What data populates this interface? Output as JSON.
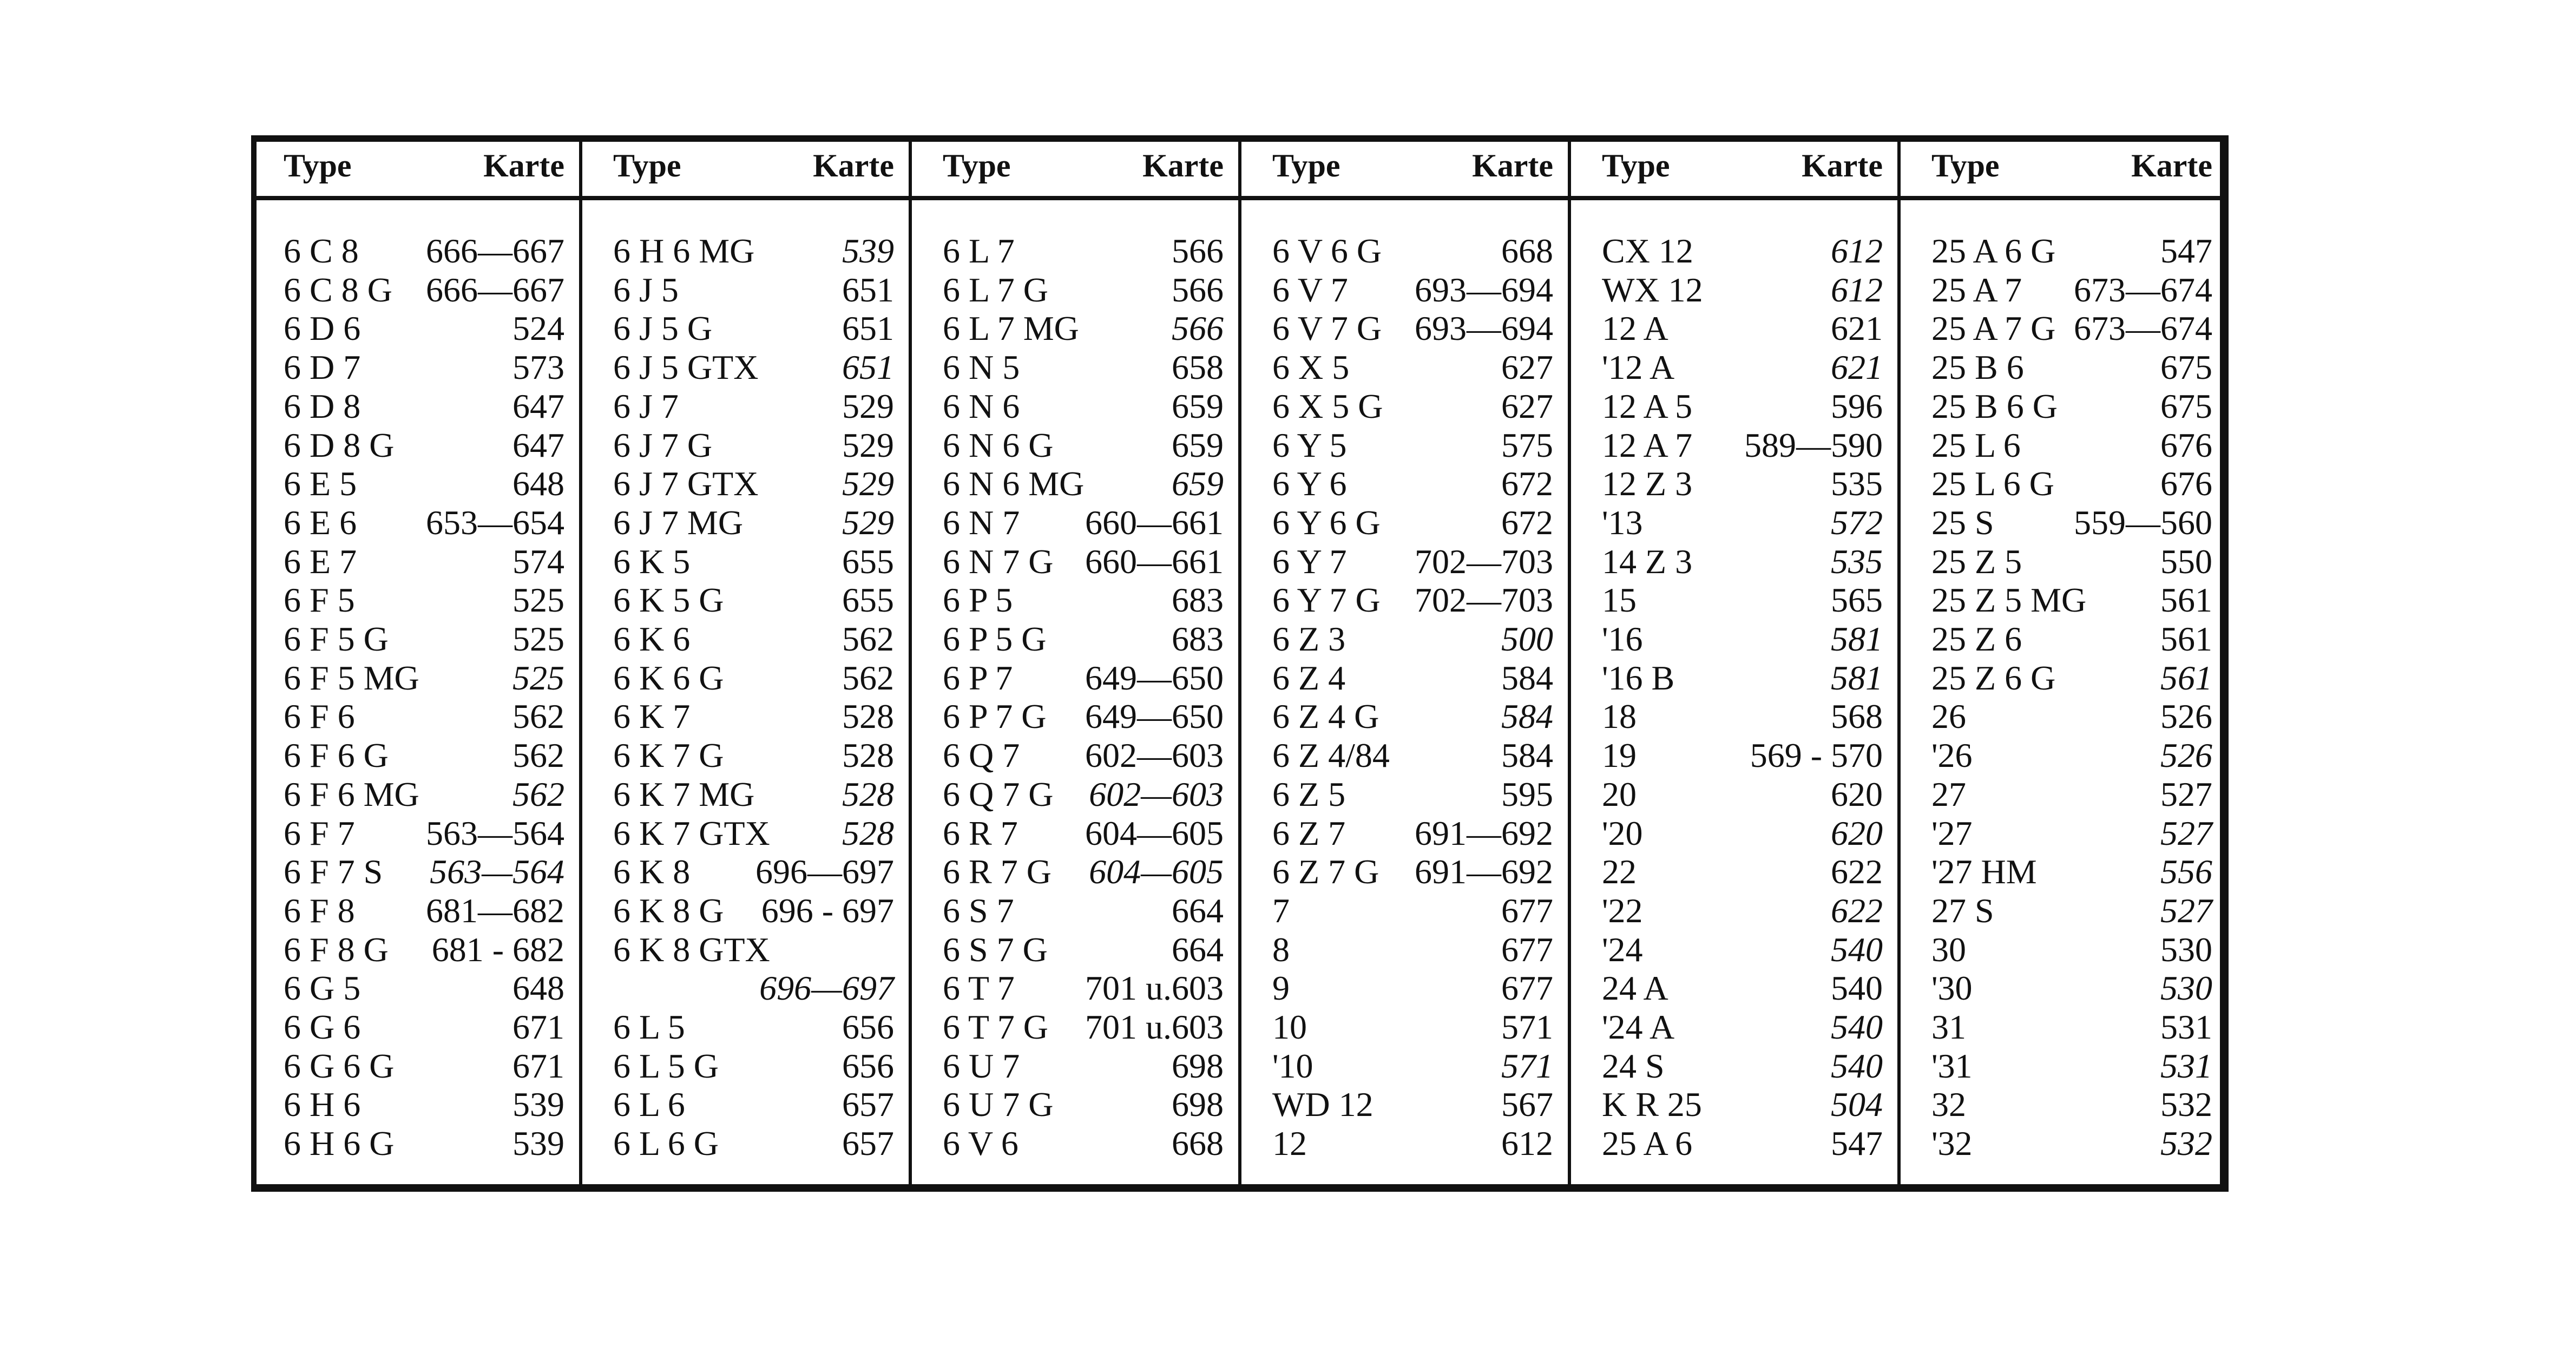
{
  "table": {
    "header": {
      "type": "Type",
      "karte": "Karte"
    },
    "groups": [
      [
        {
          "type": "6 C 8",
          "karte": "666—667"
        },
        {
          "type": "6 C 8 G",
          "karte": "666—667"
        },
        {
          "type": "6 D 6",
          "karte": "524"
        },
        {
          "type": "6 D 7",
          "karte": "573"
        },
        {
          "type": "6 D 8",
          "karte": "647"
        },
        {
          "type": "6 D 8 G",
          "karte": "647"
        },
        {
          "type": "6 E 5",
          "karte": "648"
        },
        {
          "type": "6 E 6",
          "karte": "653—654"
        },
        {
          "type": "6 E 7",
          "karte": "574"
        },
        {
          "type": "6 F 5",
          "karte": "525"
        },
        {
          "type": "6 F 5 G",
          "karte": "525"
        },
        {
          "type": "6 F 5 MG",
          "karte": "525",
          "italic": true
        },
        {
          "type": "6 F 6",
          "karte": "562"
        },
        {
          "type": "6 F 6 G",
          "karte": "562"
        },
        {
          "type": "6 F 6 MG",
          "karte": "562",
          "italic": true
        },
        {
          "type": "6 F 7",
          "karte": "563—564"
        },
        {
          "type": "6 F 7 S",
          "karte": "563—564",
          "italic": true
        },
        {
          "type": "6 F 8",
          "karte": "681—682"
        },
        {
          "type": "6 F 8 G",
          "karte": "681 - 682"
        },
        {
          "type": "6 G 5",
          "karte": "648"
        },
        {
          "type": "6 G 6",
          "karte": "671"
        },
        {
          "type": "6 G 6 G",
          "karte": "671"
        },
        {
          "type": "6 H 6",
          "karte": "539"
        },
        {
          "type": "6 H 6 G",
          "karte": "539"
        }
      ],
      [
        {
          "type": "6 H 6 MG",
          "karte": "539",
          "italic": true
        },
        {
          "type": "6 J 5",
          "karte": "651"
        },
        {
          "type": "6 J 5 G",
          "karte": "651"
        },
        {
          "type": "6 J 5 GTX",
          "karte": "651",
          "italic": true
        },
        {
          "type": "6 J 7",
          "karte": "529"
        },
        {
          "type": "6 J 7 G",
          "karte": "529"
        },
        {
          "type": "6 J 7 GTX",
          "karte": "529",
          "italic": true
        },
        {
          "type": "6 J 7 MG",
          "karte": "529",
          "italic": true
        },
        {
          "type": "6 K 5",
          "karte": "655"
        },
        {
          "type": "6 K 5 G",
          "karte": "655"
        },
        {
          "type": "6 K 6",
          "karte": "562"
        },
        {
          "type": "6 K 6 G",
          "karte": "562"
        },
        {
          "type": "6 K 7",
          "karte": "528"
        },
        {
          "type": "6 K 7 G",
          "karte": "528"
        },
        {
          "type": "6 K 7 MG",
          "karte": "528",
          "italic": true
        },
        {
          "type": "6 K 7 GTX",
          "karte": "528",
          "italic": true
        },
        {
          "type": "6 K 8",
          "karte": "696—697"
        },
        {
          "type": "6 K 8 G",
          "karte": "696 - 697"
        },
        {
          "type": "6 K 8 GTX",
          "karte": null
        },
        {
          "type": null,
          "karte": "696—697",
          "italic": true
        },
        {
          "type": "6 L 5",
          "karte": "656"
        },
        {
          "type": "6 L 5 G",
          "karte": "656"
        },
        {
          "type": "6 L 6",
          "karte": "657"
        },
        {
          "type": "6 L 6 G",
          "karte": "657"
        }
      ],
      [
        {
          "type": "6 L 7",
          "karte": "566"
        },
        {
          "type": "6 L 7 G",
          "karte": "566"
        },
        {
          "type": "6 L 7 MG",
          "karte": "566",
          "italic": true
        },
        {
          "type": "6 N 5",
          "karte": "658"
        },
        {
          "type": "6 N 6",
          "karte": "659"
        },
        {
          "type": "6 N 6 G",
          "karte": "659"
        },
        {
          "type": "6 N 6 MG",
          "karte": "659",
          "italic": true
        },
        {
          "type": "6 N 7",
          "karte": "660—661"
        },
        {
          "type": "6 N 7 G",
          "karte": "660—661"
        },
        {
          "type": "6 P 5",
          "karte": "683"
        },
        {
          "type": "6 P 5 G",
          "karte": "683"
        },
        {
          "type": "6 P 7",
          "karte": "649—650"
        },
        {
          "type": "6 P 7 G",
          "karte": "649—650"
        },
        {
          "type": "6 Q 7",
          "karte": "602—603"
        },
        {
          "type": "6 Q 7 G",
          "karte": "602—603",
          "italic": true
        },
        {
          "type": "6 R 7",
          "karte": "604—605"
        },
        {
          "type": "6 R 7 G",
          "karte": "604—605",
          "italic": true
        },
        {
          "type": "6 S 7",
          "karte": "664"
        },
        {
          "type": "6 S 7 G",
          "karte": "664"
        },
        {
          "type": "6 T 7",
          "karte": "701 u.603"
        },
        {
          "type": "6 T 7 G",
          "karte": "701 u.603"
        },
        {
          "type": "6 U 7",
          "karte": "698"
        },
        {
          "type": "6 U 7 G",
          "karte": "698"
        },
        {
          "type": "6 V 6",
          "karte": "668"
        }
      ],
      [
        {
          "type": "6 V 6 G",
          "karte": "668"
        },
        {
          "type": "6 V 7",
          "karte": "693—694"
        },
        {
          "type": "6 V 7 G",
          "karte": "693—694"
        },
        {
          "type": "6 X 5",
          "karte": "627"
        },
        {
          "type": "6 X 5 G",
          "karte": "627"
        },
        {
          "type": "6 Y 5",
          "karte": "575"
        },
        {
          "type": "6 Y 6",
          "karte": "672"
        },
        {
          "type": "6 Y 6 G",
          "karte": "672"
        },
        {
          "type": "6 Y 7",
          "karte": "702—703"
        },
        {
          "type": "6 Y 7 G",
          "karte": "702—703"
        },
        {
          "type": "6 Z 3",
          "karte": "500",
          "italic": true
        },
        {
          "type": "6 Z 4",
          "karte": "584"
        },
        {
          "type": "6 Z 4 G",
          "karte": "584",
          "italic": true
        },
        {
          "type": "6 Z 4/84",
          "karte": "584"
        },
        {
          "type": "6 Z 5",
          "karte": "595"
        },
        {
          "type": "6 Z 7",
          "karte": "691—692"
        },
        {
          "type": "6 Z 7 G",
          "karte": "691—692"
        },
        {
          "type": "7",
          "karte": "677"
        },
        {
          "type": "8",
          "karte": "677"
        },
        {
          "type": "9",
          "karte": "677"
        },
        {
          "type": "10",
          "karte": "571"
        },
        {
          "type": "'10",
          "karte": "571",
          "italic": true
        },
        {
          "type": "WD 12",
          "karte": "567"
        },
        {
          "type": "12",
          "karte": "612"
        }
      ],
      [
        {
          "type": "CX 12",
          "karte": "612",
          "italic": true
        },
        {
          "type": "WX 12",
          "karte": "612",
          "italic": true
        },
        {
          "type": "12 A",
          "karte": "621"
        },
        {
          "type": "'12 A",
          "karte": "621",
          "italic": true
        },
        {
          "type": "12 A 5",
          "karte": "596"
        },
        {
          "type": "12 A 7",
          "karte": "589—590"
        },
        {
          "type": "12 Z 3",
          "karte": "535"
        },
        {
          "type": "'13",
          "karte": "572",
          "italic": true
        },
        {
          "type": "14 Z 3",
          "karte": "535",
          "italic": true
        },
        {
          "type": "15",
          "karte": "565"
        },
        {
          "type": "'16",
          "karte": "581",
          "italic": true
        },
        {
          "type": "'16 B",
          "karte": "581",
          "italic": true
        },
        {
          "type": "18",
          "karte": "568"
        },
        {
          "type": "19",
          "karte": "569 - 570"
        },
        {
          "type": "20",
          "karte": "620"
        },
        {
          "type": "'20",
          "karte": "620",
          "italic": true
        },
        {
          "type": "22",
          "karte": "622"
        },
        {
          "type": "'22",
          "karte": "622",
          "italic": true
        },
        {
          "type": "'24",
          "karte": "540",
          "italic": true
        },
        {
          "type": "24 A",
          "karte": "540"
        },
        {
          "type": "'24 A",
          "karte": "540",
          "italic": true
        },
        {
          "type": "24 S",
          "karte": "540",
          "italic": true
        },
        {
          "type": "K R 25",
          "karte": "504",
          "italic": true
        },
        {
          "type": "25 A 6",
          "karte": "547"
        }
      ],
      [
        {
          "type": "25 A 6 G",
          "karte": "547"
        },
        {
          "type": "25 A 7",
          "karte": "673—674"
        },
        {
          "type": "25 A 7 G",
          "karte": "673—674"
        },
        {
          "type": "25 B 6",
          "karte": "675"
        },
        {
          "type": "25 B 6 G",
          "karte": "675"
        },
        {
          "type": "25 L 6",
          "karte": "676"
        },
        {
          "type": "25 L 6 G",
          "karte": "676"
        },
        {
          "type": "25 S",
          "karte": "559—560"
        },
        {
          "type": "25 Z 5",
          "karte": "550"
        },
        {
          "type": "25 Z 5 MG",
          "karte": "561"
        },
        {
          "type": "25 Z 6",
          "karte": "561"
        },
        {
          "type": "25 Z 6 G",
          "karte": "561",
          "italic": true
        },
        {
          "type": "26",
          "karte": "526"
        },
        {
          "type": "'26",
          "karte": "526",
          "italic": true
        },
        {
          "type": "27",
          "karte": "527"
        },
        {
          "type": "'27",
          "karte": "527",
          "italic": true
        },
        {
          "type": "'27 HM",
          "karte": "556",
          "italic": true
        },
        {
          "type": "27 S",
          "karte": "527",
          "italic": true
        },
        {
          "type": "30",
          "karte": "530"
        },
        {
          "type": "'30",
          "karte": "530",
          "italic": true
        },
        {
          "type": "31",
          "karte": "531"
        },
        {
          "type": "'31",
          "karte": "531",
          "italic": true
        },
        {
          "type": "32",
          "karte": "532"
        },
        {
          "type": "'32",
          "karte": "532",
          "italic": true
        }
      ]
    ]
  }
}
